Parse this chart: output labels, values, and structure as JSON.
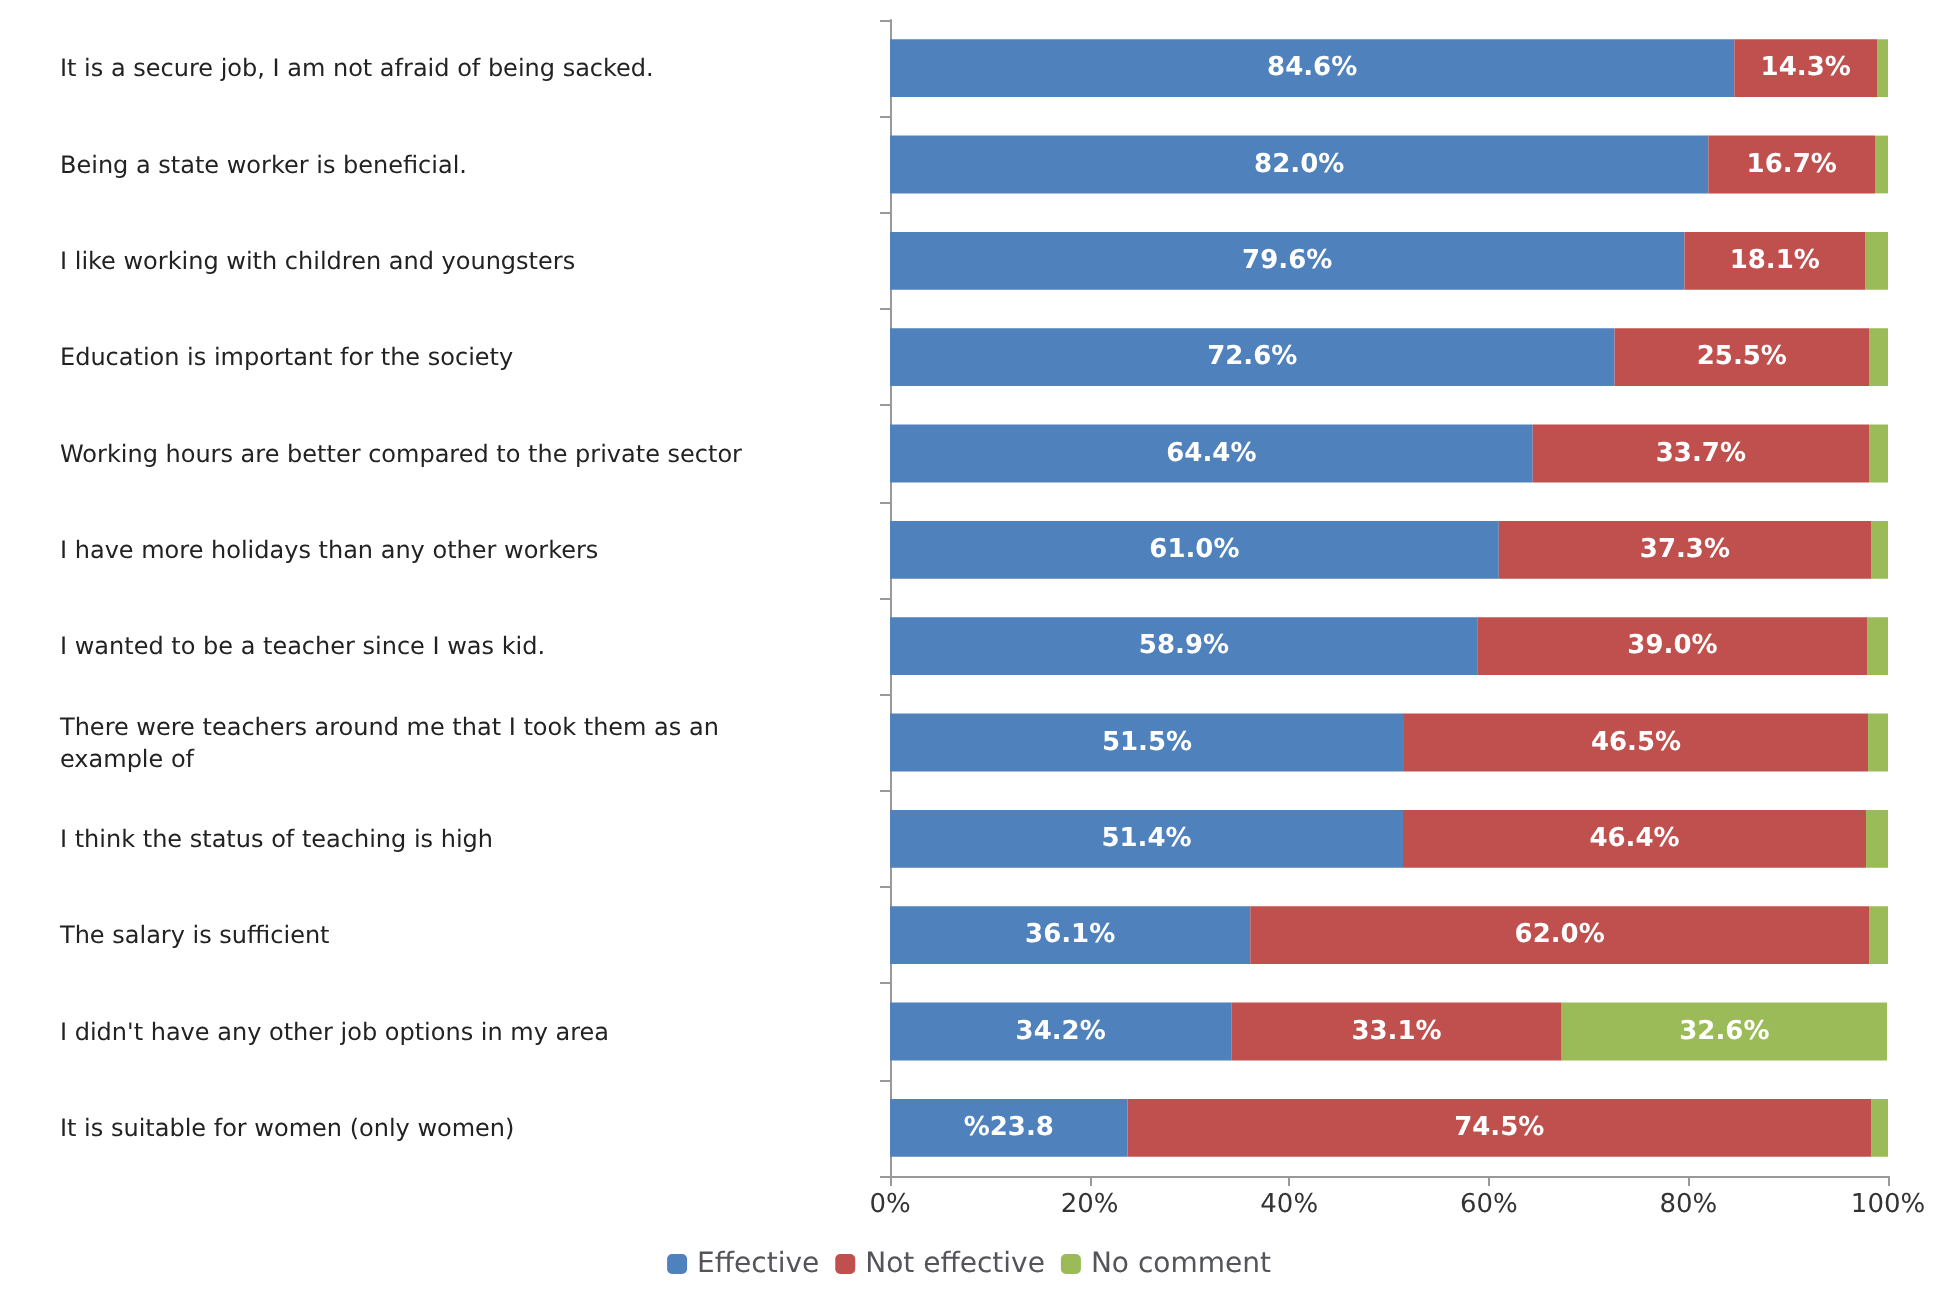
{
  "chart_data": {
    "type": "bar",
    "orientation": "horizontal",
    "stacked": true,
    "categories": [
      "It is a secure job, I am not afraid of being sacked.",
      "Being a state worker is beneficial.",
      "I like working with children and youngsters",
      "Education is important for the society",
      "Working hours are better compared to the private sector",
      "I have more holidays than any other workers",
      "I wanted to be a teacher since I was kid.",
      "There were teachers around me that I took them as an example of",
      "I think the status of teaching is high",
      "The salary is sufficient",
      "I didn't have any other job options in my area",
      "It is suitable for women (only women)"
    ],
    "series": [
      {
        "name": "Effective",
        "color": "#4f81bd",
        "values": [
          84.6,
          82.0,
          79.6,
          72.6,
          64.4,
          61.0,
          58.9,
          51.5,
          51.4,
          36.1,
          34.2,
          23.8
        ],
        "value_labels": [
          "84.6%",
          "82.0%",
          "79.6%",
          "72.6%",
          "64.4%",
          "61.0%",
          "58.9%",
          "51.5%",
          "51.4%",
          "36.1%",
          "34.2%",
          "%23.8"
        ]
      },
      {
        "name": "Not effective",
        "color": "#c0504d",
        "values": [
          14.3,
          16.7,
          18.1,
          25.5,
          33.7,
          37.3,
          39.0,
          46.5,
          46.4,
          62.0,
          33.1,
          74.5
        ],
        "value_labels": [
          "14.3%",
          "16.7%",
          "18.1%",
          "25.5%",
          "33.7%",
          "37.3%",
          "39.0%",
          "46.5%",
          "46.4%",
          "62.0%",
          "33.1%",
          "74.5%"
        ]
      },
      {
        "name": "No comment",
        "color": "#9bbb59",
        "values": [
          1.1,
          1.3,
          2.3,
          1.9,
          1.9,
          1.7,
          2.1,
          2.0,
          2.2,
          1.9,
          32.6,
          1.7
        ],
        "value_labels": [
          null,
          null,
          null,
          null,
          null,
          null,
          null,
          null,
          null,
          null,
          "32.6%",
          null
        ]
      }
    ],
    "xlim": [
      0,
      100
    ],
    "xticks": [
      {
        "value": 0,
        "label": "0%"
      },
      {
        "value": 20,
        "label": "20%"
      },
      {
        "value": 40,
        "label": "40%"
      },
      {
        "value": 60,
        "label": "60%"
      },
      {
        "value": 80,
        "label": "80%"
      },
      {
        "value": 100,
        "label": "100%"
      }
    ],
    "grid": false,
    "legend": "bottom"
  }
}
